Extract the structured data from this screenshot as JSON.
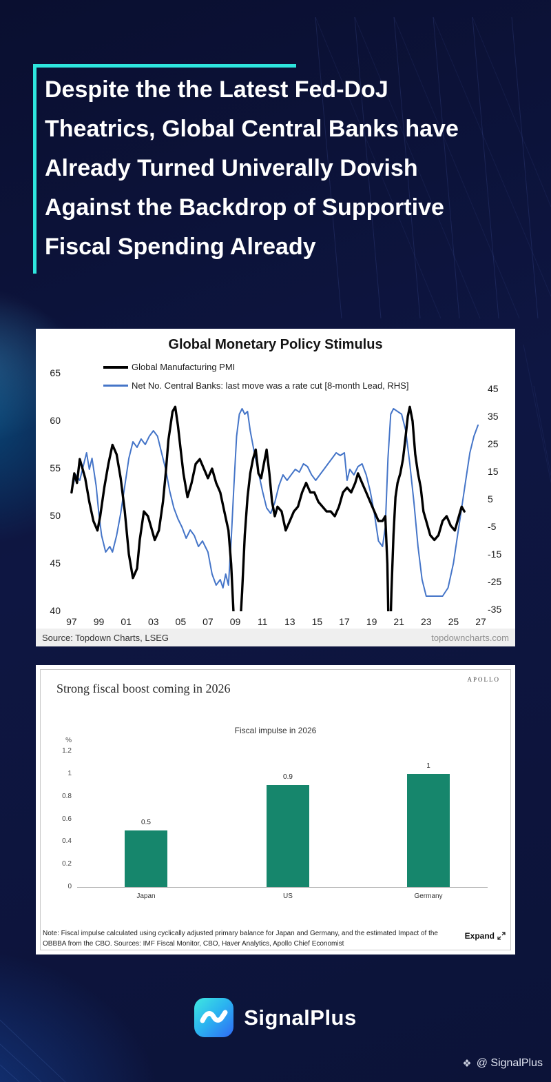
{
  "headline": {
    "text": "Despite the the Latest Fed-DoJ Theatrics, Global Central Banks have Already Turned Univerally Dovish Against the Backdrop of Supportive Fiscal Spending Already"
  },
  "chart_data": [
    {
      "type": "line",
      "title": "Global Monetary Policy Stimulus",
      "source_left": "Source: Topdown Charts, LSEG",
      "source_right": "topdowncharts.com",
      "x_ticks": [
        "97",
        "99",
        "01",
        "03",
        "05",
        "07",
        "09",
        "11",
        "13",
        "15",
        "17",
        "19",
        "21",
        "23",
        "25",
        "27"
      ],
      "x_range": [
        1996.6,
        2027.0
      ],
      "left_axis": {
        "ticks": [
          65,
          60,
          55,
          50,
          45,
          40
        ],
        "range": [
          40,
          65
        ]
      },
      "right_axis": {
        "ticks": [
          45,
          35,
          25,
          15,
          5,
          -5,
          -15,
          -25,
          -35
        ],
        "range": [
          -35,
          45
        ]
      },
      "legend_position": "top-left",
      "grid": false,
      "series": [
        {
          "name": "Global Manufacturing PMI",
          "key": "pmi-line",
          "color": "#000000",
          "width": 3.4,
          "axis": "left",
          "points": [
            [
              1997.0,
              52.5
            ],
            [
              1997.2,
              54.5
            ],
            [
              1997.4,
              53.5
            ],
            [
              1997.6,
              56
            ],
            [
              1997.8,
              55
            ],
            [
              1998.0,
              54
            ],
            [
              1998.3,
              51.5
            ],
            [
              1998.6,
              49.5
            ],
            [
              1998.9,
              48.5
            ],
            [
              1999.1,
              50
            ],
            [
              1999.4,
              53
            ],
            [
              1999.7,
              55.5
            ],
            [
              2000.0,
              57.5
            ],
            [
              2000.3,
              56.5
            ],
            [
              2000.6,
              54
            ],
            [
              2000.9,
              50.5
            ],
            [
              2001.2,
              46
            ],
            [
              2001.5,
              43.5
            ],
            [
              2001.8,
              44.5
            ],
            [
              2002.0,
              47.5
            ],
            [
              2002.3,
              50.5
            ],
            [
              2002.6,
              50
            ],
            [
              2002.9,
              48.5
            ],
            [
              2003.1,
              47.5
            ],
            [
              2003.4,
              48.5
            ],
            [
              2003.7,
              51.5
            ],
            [
              2003.9,
              54.5
            ],
            [
              2004.1,
              58
            ],
            [
              2004.4,
              61
            ],
            [
              2004.6,
              61.5
            ],
            [
              2004.8,
              59.5
            ],
            [
              2005.0,
              57
            ],
            [
              2005.2,
              54.5
            ],
            [
              2005.5,
              52
            ],
            [
              2005.8,
              53.5
            ],
            [
              2006.1,
              55.5
            ],
            [
              2006.4,
              56
            ],
            [
              2006.7,
              55
            ],
            [
              2007.0,
              54
            ],
            [
              2007.3,
              55
            ],
            [
              2007.6,
              53.5
            ],
            [
              2007.9,
              52.5
            ],
            [
              2008.2,
              50.5
            ],
            [
              2008.5,
              48.5
            ],
            [
              2008.7,
              45
            ],
            [
              2008.9,
              39
            ],
            [
              2009.1,
              34
            ],
            [
              2009.3,
              37
            ],
            [
              2009.5,
              42
            ],
            [
              2009.7,
              48
            ],
            [
              2009.9,
              52
            ],
            [
              2010.1,
              54.5
            ],
            [
              2010.3,
              56
            ],
            [
              2010.5,
              57
            ],
            [
              2010.7,
              54.5
            ],
            [
              2010.9,
              54
            ],
            [
              2011.1,
              55.5
            ],
            [
              2011.3,
              57
            ],
            [
              2011.5,
              54.5
            ],
            [
              2011.7,
              51.5
            ],
            [
              2011.9,
              50
            ],
            [
              2012.1,
              51
            ],
            [
              2012.4,
              50.5
            ],
            [
              2012.7,
              48.5
            ],
            [
              2013.0,
              49.5
            ],
            [
              2013.3,
              50.5
            ],
            [
              2013.6,
              51
            ],
            [
              2013.9,
              52.5
            ],
            [
              2014.2,
              53.5
            ],
            [
              2014.5,
              52.5
            ],
            [
              2014.8,
              52.5
            ],
            [
              2015.1,
              51.5
            ],
            [
              2015.4,
              51
            ],
            [
              2015.7,
              50.5
            ],
            [
              2016.0,
              50.5
            ],
            [
              2016.3,
              50
            ],
            [
              2016.6,
              51
            ],
            [
              2016.9,
              52.5
            ],
            [
              2017.2,
              53
            ],
            [
              2017.5,
              52.5
            ],
            [
              2017.8,
              53.5
            ],
            [
              2018.0,
              54.5
            ],
            [
              2018.3,
              53.5
            ],
            [
              2018.6,
              52.5
            ],
            [
              2018.9,
              51.5
            ],
            [
              2019.2,
              50.5
            ],
            [
              2019.5,
              49.5
            ],
            [
              2019.8,
              49.5
            ],
            [
              2020.0,
              50
            ],
            [
              2020.15,
              45
            ],
            [
              2020.3,
              34
            ],
            [
              2020.45,
              42
            ],
            [
              2020.6,
              48
            ],
            [
              2020.75,
              52
            ],
            [
              2020.9,
              53.5
            ],
            [
              2021.1,
              54.5
            ],
            [
              2021.3,
              56
            ],
            [
              2021.5,
              58.5
            ],
            [
              2021.65,
              60.5
            ],
            [
              2021.8,
              61.5
            ],
            [
              2022.0,
              60
            ],
            [
              2022.2,
              56.5
            ],
            [
              2022.4,
              54.5
            ],
            [
              2022.6,
              53
            ],
            [
              2022.8,
              50.5
            ],
            [
              2023.0,
              49.5
            ],
            [
              2023.3,
              48
            ],
            [
              2023.6,
              47.5
            ],
            [
              2023.9,
              48
            ],
            [
              2024.2,
              49.5
            ],
            [
              2024.5,
              50
            ],
            [
              2024.8,
              49
            ],
            [
              2025.1,
              48.5
            ],
            [
              2025.4,
              50
            ],
            [
              2025.6,
              51
            ],
            [
              2025.8,
              50.5
            ]
          ]
        },
        {
          "name": "Net No. Central Banks: last move was a rate cut  [8-month Lead, RHS]",
          "key": "central-banks-line",
          "color": "#4575c8",
          "width": 2,
          "axis": "right",
          "points": [
            [
              1997.0,
              8
            ],
            [
              1997.3,
              14
            ],
            [
              1997.6,
              12
            ],
            [
              1997.9,
              18
            ],
            [
              1998.1,
              22
            ],
            [
              1998.3,
              16
            ],
            [
              1998.5,
              20
            ],
            [
              1998.8,
              10
            ],
            [
              1999.0,
              0
            ],
            [
              1999.2,
              -8
            ],
            [
              1999.5,
              -14
            ],
            [
              1999.8,
              -12
            ],
            [
              2000.0,
              -14
            ],
            [
              2000.3,
              -8
            ],
            [
              2000.6,
              0
            ],
            [
              2000.9,
              10
            ],
            [
              2001.2,
              20
            ],
            [
              2001.5,
              26
            ],
            [
              2001.8,
              24
            ],
            [
              2002.1,
              27
            ],
            [
              2002.4,
              25
            ],
            [
              2002.7,
              28
            ],
            [
              2003.0,
              30
            ],
            [
              2003.3,
              28
            ],
            [
              2003.6,
              22
            ],
            [
              2003.9,
              16
            ],
            [
              2004.2,
              8
            ],
            [
              2004.5,
              2
            ],
            [
              2004.8,
              -2
            ],
            [
              2005.1,
              -5
            ],
            [
              2005.4,
              -9
            ],
            [
              2005.7,
              -6
            ],
            [
              2006.0,
              -8
            ],
            [
              2006.3,
              -12
            ],
            [
              2006.6,
              -10
            ],
            [
              2007.0,
              -14
            ],
            [
              2007.3,
              -22
            ],
            [
              2007.6,
              -26
            ],
            [
              2007.9,
              -24
            ],
            [
              2008.1,
              -27
            ],
            [
              2008.3,
              -22
            ],
            [
              2008.5,
              -26
            ],
            [
              2008.7,
              -10
            ],
            [
              2008.9,
              10
            ],
            [
              2009.1,
              28
            ],
            [
              2009.3,
              36
            ],
            [
              2009.5,
              38
            ],
            [
              2009.7,
              36
            ],
            [
              2009.9,
              37
            ],
            [
              2010.1,
              30
            ],
            [
              2010.4,
              22
            ],
            [
              2010.7,
              15
            ],
            [
              2011.0,
              8
            ],
            [
              2011.3,
              2
            ],
            [
              2011.6,
              0
            ],
            [
              2011.9,
              4
            ],
            [
              2012.2,
              10
            ],
            [
              2012.5,
              14
            ],
            [
              2012.8,
              12
            ],
            [
              2013.1,
              14
            ],
            [
              2013.4,
              16
            ],
            [
              2013.7,
              15
            ],
            [
              2014.0,
              18
            ],
            [
              2014.3,
              17
            ],
            [
              2014.6,
              14
            ],
            [
              2014.9,
              12
            ],
            [
              2015.2,
              14
            ],
            [
              2015.5,
              16
            ],
            [
              2015.8,
              18
            ],
            [
              2016.1,
              20
            ],
            [
              2016.4,
              22
            ],
            [
              2016.7,
              21
            ],
            [
              2017.0,
              22
            ],
            [
              2017.2,
              12
            ],
            [
              2017.4,
              16
            ],
            [
              2017.7,
              14
            ],
            [
              2018.0,
              17
            ],
            [
              2018.3,
              18
            ],
            [
              2018.6,
              14
            ],
            [
              2018.9,
              8
            ],
            [
              2019.2,
              0
            ],
            [
              2019.5,
              -10
            ],
            [
              2019.8,
              -12
            ],
            [
              2020.0,
              -5
            ],
            [
              2020.2,
              20
            ],
            [
              2020.4,
              36
            ],
            [
              2020.6,
              38
            ],
            [
              2020.9,
              37
            ],
            [
              2021.2,
              36
            ],
            [
              2021.5,
              30
            ],
            [
              2021.8,
              18
            ],
            [
              2022.1,
              4
            ],
            [
              2022.4,
              -12
            ],
            [
              2022.7,
              -24
            ],
            [
              2023.0,
              -30
            ],
            [
              2023.4,
              -30
            ],
            [
              2023.8,
              -30
            ],
            [
              2024.2,
              -30
            ],
            [
              2024.6,
              -27
            ],
            [
              2025.0,
              -18
            ],
            [
              2025.3,
              -8
            ],
            [
              2025.6,
              2
            ],
            [
              2025.9,
              12
            ],
            [
              2026.2,
              22
            ],
            [
              2026.5,
              28
            ],
            [
              2026.8,
              32
            ]
          ]
        }
      ]
    },
    {
      "type": "bar",
      "heading": "Strong fiscal boost coming in 2026",
      "brand": "APOLLO",
      "title": "Fiscal impulse in 2026",
      "ylabel": "%",
      "y_ticks": [
        1.2,
        1,
        0.8,
        0.6,
        0.4,
        0.2,
        0
      ],
      "ylim": [
        0,
        1.2
      ],
      "categories": [
        "Japan",
        "US",
        "Germany"
      ],
      "values": [
        0.5,
        0.9,
        1
      ],
      "bar_color": "#16866c",
      "note": "Note: Fiscal impulse calculated using cyclically adjusted primary balance for Japan and Germany, and the estimated Impact of the OBBBA from the CBO. Sources: IMF Fiscal Monitor, CBO, Haver Analytics, Apollo Chief Economist",
      "expand_label": "Expand"
    }
  ],
  "footer": {
    "brand": "SignalPlus",
    "handle": "@ SignalPlus",
    "handle_icon": "❖"
  },
  "colors": {
    "accent_teal": "#2ee6de",
    "background_navy": "#0d1540",
    "pmi_line": "#000000",
    "central_banks_line": "#4575c8",
    "fiscal_bar": "#16866c"
  }
}
